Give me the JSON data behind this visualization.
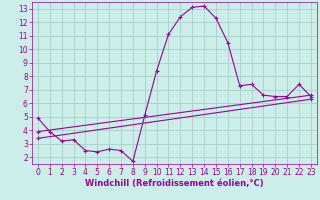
{
  "background_color": "#cceee8",
  "grid_color": "#aad4ce",
  "line_color": "#990099",
  "xlabel": "Windchill (Refroidissement éolien,°C)",
  "ylim": [
    1.5,
    13.5
  ],
  "xlim": [
    -0.5,
    23.5
  ],
  "yticks": [
    2,
    3,
    4,
    5,
    6,
    7,
    8,
    9,
    10,
    11,
    12,
    13
  ],
  "xticks": [
    0,
    1,
    2,
    3,
    4,
    5,
    6,
    7,
    8,
    9,
    10,
    11,
    12,
    13,
    14,
    15,
    16,
    17,
    18,
    19,
    20,
    21,
    22,
    23
  ],
  "line1_x": [
    0,
    1,
    2,
    3,
    4,
    5,
    6,
    7,
    8,
    9,
    10,
    11,
    12,
    13,
    14,
    15,
    16,
    17,
    18,
    19,
    20,
    21,
    22,
    23
  ],
  "line1_y": [
    4.9,
    3.9,
    3.2,
    3.3,
    2.5,
    2.4,
    2.6,
    2.5,
    1.7,
    5.1,
    8.4,
    11.1,
    12.4,
    13.1,
    13.2,
    12.3,
    10.5,
    7.3,
    7.4,
    6.6,
    6.5,
    6.5,
    7.4,
    6.5
  ],
  "line2_x": [
    0,
    23
  ],
  "line2_y": [
    3.4,
    6.3
  ],
  "line3_x": [
    0,
    23
  ],
  "line3_y": [
    3.9,
    6.6
  ],
  "tick_fontsize": 5.5,
  "label_fontsize": 6.0,
  "marker": "+"
}
